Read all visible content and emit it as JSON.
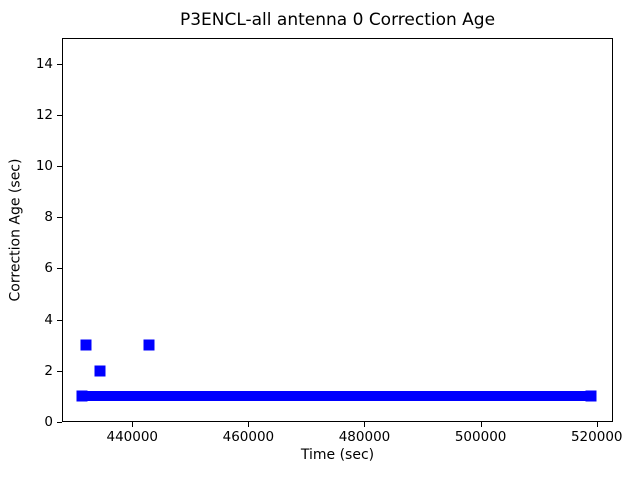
{
  "title": "P3ENCL-all antenna 0 Correction Age",
  "chart_data": {
    "type": "scatter",
    "marker_style": "plus",
    "title": "P3ENCL-all antenna 0 Correction Age",
    "xlabel": "Time (sec)",
    "ylabel": "Correction Age (sec)",
    "xlim": [
      427900,
      522800
    ],
    "ylim": [
      0,
      15
    ],
    "x_ticks": [
      440000,
      460000,
      480000,
      500000,
      520000
    ],
    "x_tick_labels": [
      "440000",
      "460000",
      "480000",
      "500000",
      "520000"
    ],
    "y_ticks": [
      0,
      2,
      4,
      6,
      8,
      10,
      12,
      14
    ],
    "y_tick_labels": [
      "0",
      "2",
      "4",
      "6",
      "8",
      "10",
      "12",
      "14"
    ],
    "grid": false,
    "legend": null,
    "series": [
      {
        "name": "correction age",
        "color": "#0000ff",
        "dense_segment": {
          "y": 1,
          "x_start": 431300,
          "x_end": 519000,
          "description": "continuous run of overlapping + markers at correction age 1 sec"
        },
        "outliers": [
          {
            "x": 432100,
            "y": 3
          },
          {
            "x": 434400,
            "y": 2
          },
          {
            "x": 442800,
            "y": 3
          }
        ]
      }
    ],
    "colors": {
      "marker": "#0000ff",
      "axes": "#000000",
      "background": "#ffffff"
    }
  }
}
